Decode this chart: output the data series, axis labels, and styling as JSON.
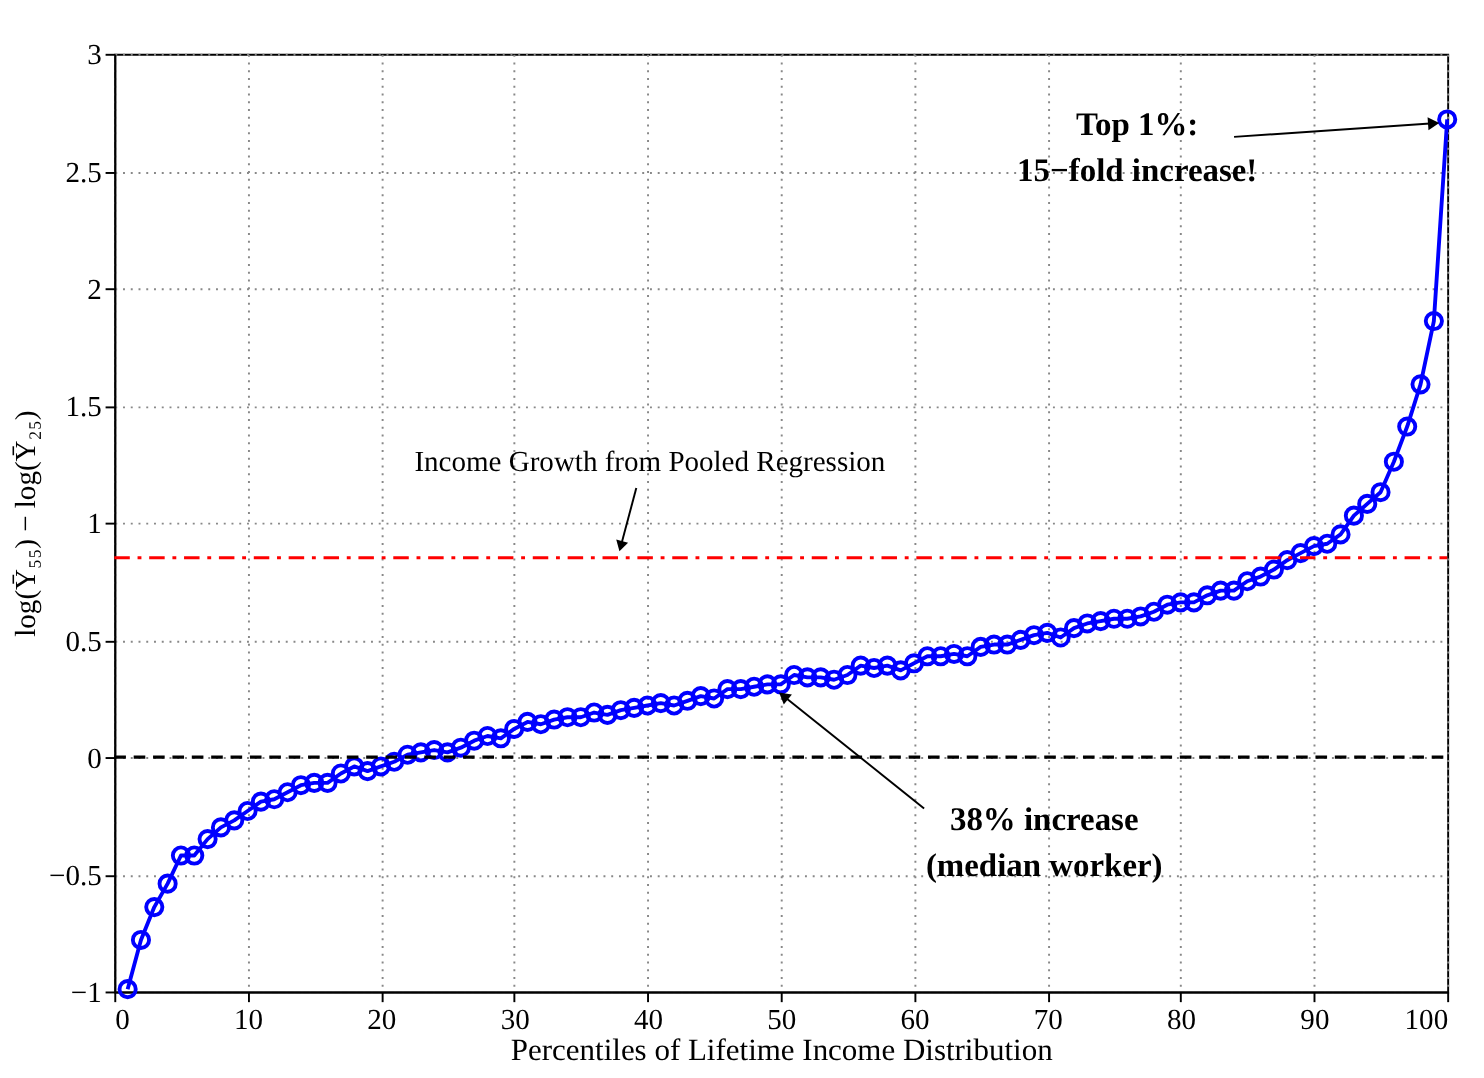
{
  "chart_data": {
    "type": "line",
    "xlabel": "Percentiles of Lifetime Income Distribution",
    "ylabel": "log(Ȳ₅₅) − log(Ȳ₂₅)",
    "x": [
      1,
      2,
      3,
      4,
      5,
      6,
      7,
      8,
      9,
      10,
      11,
      12,
      13,
      14,
      15,
      16,
      17,
      18,
      19,
      20,
      21,
      22,
      23,
      24,
      25,
      26,
      27,
      28,
      29,
      30,
      31,
      32,
      33,
      34,
      35,
      36,
      37,
      38,
      39,
      40,
      41,
      42,
      43,
      44,
      45,
      46,
      47,
      48,
      49,
      50,
      51,
      52,
      53,
      54,
      55,
      56,
      57,
      58,
      59,
      60,
      61,
      62,
      63,
      64,
      65,
      66,
      67,
      68,
      69,
      70,
      71,
      72,
      73,
      74,
      75,
      76,
      77,
      78,
      79,
      80,
      81,
      82,
      83,
      84,
      85,
      86,
      87,
      88,
      89,
      90,
      91,
      92,
      93,
      94,
      95,
      96,
      97,
      98,
      99,
      100
    ],
    "series": [
      {
        "color": "#0000ff",
        "values": [
          -0.99,
          -0.78,
          -0.64,
          -0.54,
          -0.42,
          -0.42,
          -0.35,
          -0.3,
          -0.27,
          -0.23,
          -0.19,
          -0.18,
          -0.15,
          -0.12,
          -0.11,
          -0.11,
          -0.07,
          -0.04,
          -0.06,
          -0.04,
          -0.02,
          0.01,
          0.02,
          0.03,
          0.02,
          0.04,
          0.07,
          0.09,
          0.08,
          0.12,
          0.15,
          0.14,
          0.16,
          0.17,
          0.17,
          0.19,
          0.18,
          0.2,
          0.21,
          0.22,
          0.23,
          0.22,
          0.24,
          0.26,
          0.25,
          0.29,
          0.29,
          0.3,
          0.31,
          0.31,
          0.35,
          0.34,
          0.34,
          0.33,
          0.35,
          0.39,
          0.38,
          0.39,
          0.37,
          0.4,
          0.43,
          0.43,
          0.44,
          0.43,
          0.47,
          0.48,
          0.48,
          0.5,
          0.52,
          0.53,
          0.51,
          0.55,
          0.57,
          0.58,
          0.59,
          0.59,
          0.6,
          0.62,
          0.65,
          0.66,
          0.66,
          0.69,
          0.71,
          0.71,
          0.75,
          0.77,
          0.8,
          0.84,
          0.87,
          0.9,
          0.91,
          0.95,
          1.03,
          1.08,
          1.13,
          1.26,
          1.41,
          1.59,
          1.86,
          2.72
        ]
      }
    ],
    "xlim": [
      0,
      100
    ],
    "xticks": [
      0,
      10,
      20,
      30,
      40,
      50,
      60,
      70,
      80,
      90,
      100
    ],
    "ylim": [
      -1,
      3
    ],
    "yticks": [
      -1,
      -0.5,
      0,
      0.5,
      1,
      1.5,
      2,
      2.5,
      3
    ],
    "ref_lines": [
      {
        "axis": "y",
        "value": 0.85,
        "label": "Income Growth from Pooled Regression",
        "color": "#ff0000",
        "line_style": "dashdot"
      },
      {
        "axis": "y",
        "value": 0,
        "color": "#000000",
        "line_style": "dashed"
      }
    ],
    "annotations": [
      {
        "text": "Top 1%:\n15−fold increase!",
        "x": 100,
        "y": 2.72
      },
      {
        "text": "38% increase\n(median worker)",
        "x": 50,
        "y": 0.31
      }
    ],
    "grid": true,
    "marker": "circle",
    "line_style": "solid"
  }
}
